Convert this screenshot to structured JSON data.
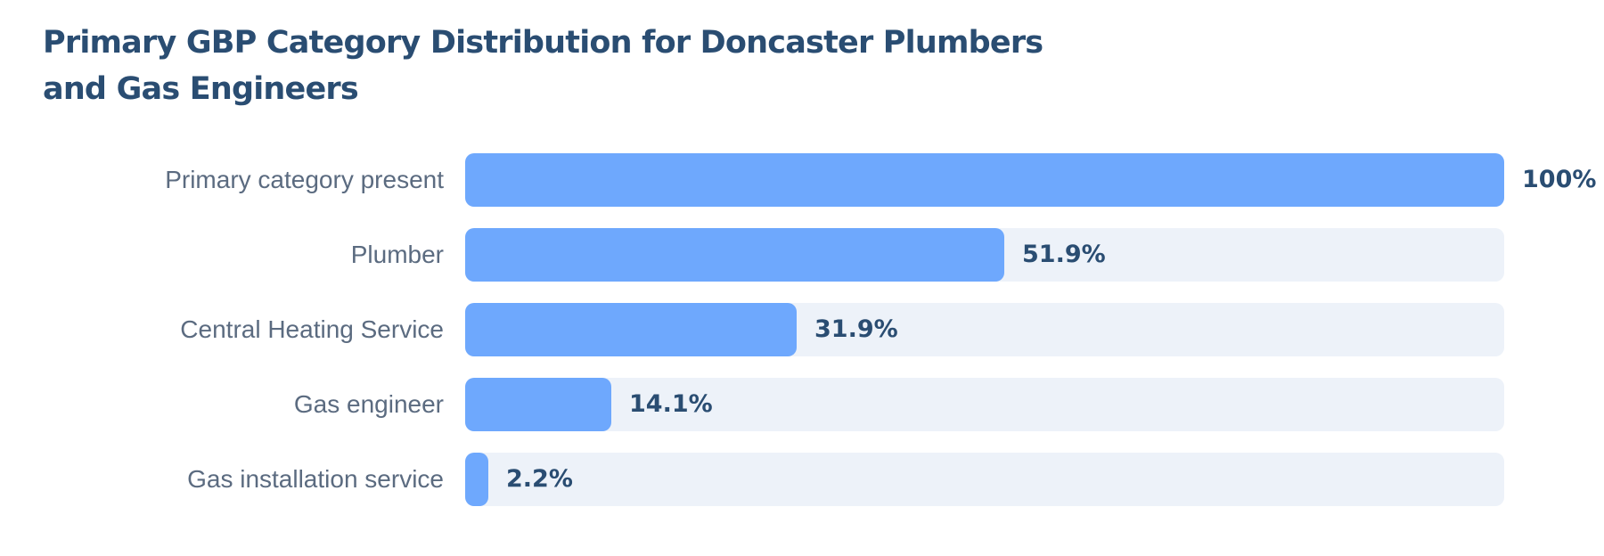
{
  "chart_data": {
    "type": "bar",
    "orientation": "horizontal",
    "title": "Primary GBP Category Distribution for Doncaster Plumbers and Gas Engineers",
    "categories": [
      "Primary category present",
      "Plumber",
      "Central Heating Service",
      "Gas engineer",
      "Gas installation service"
    ],
    "values": [
      100,
      51.9,
      31.9,
      14.1,
      2.2
    ],
    "value_labels": [
      "100%",
      "51.9%",
      "31.9%",
      "14.1%",
      "2.2%"
    ],
    "xlim": [
      0,
      100
    ],
    "unit": "%",
    "grid": false,
    "legend": "none",
    "colors": {
      "bar": "#6ea8fd",
      "track": "#edf2f9",
      "title": "#2a4d72",
      "label": "#5b6b80",
      "value": "#2a4d72"
    }
  }
}
